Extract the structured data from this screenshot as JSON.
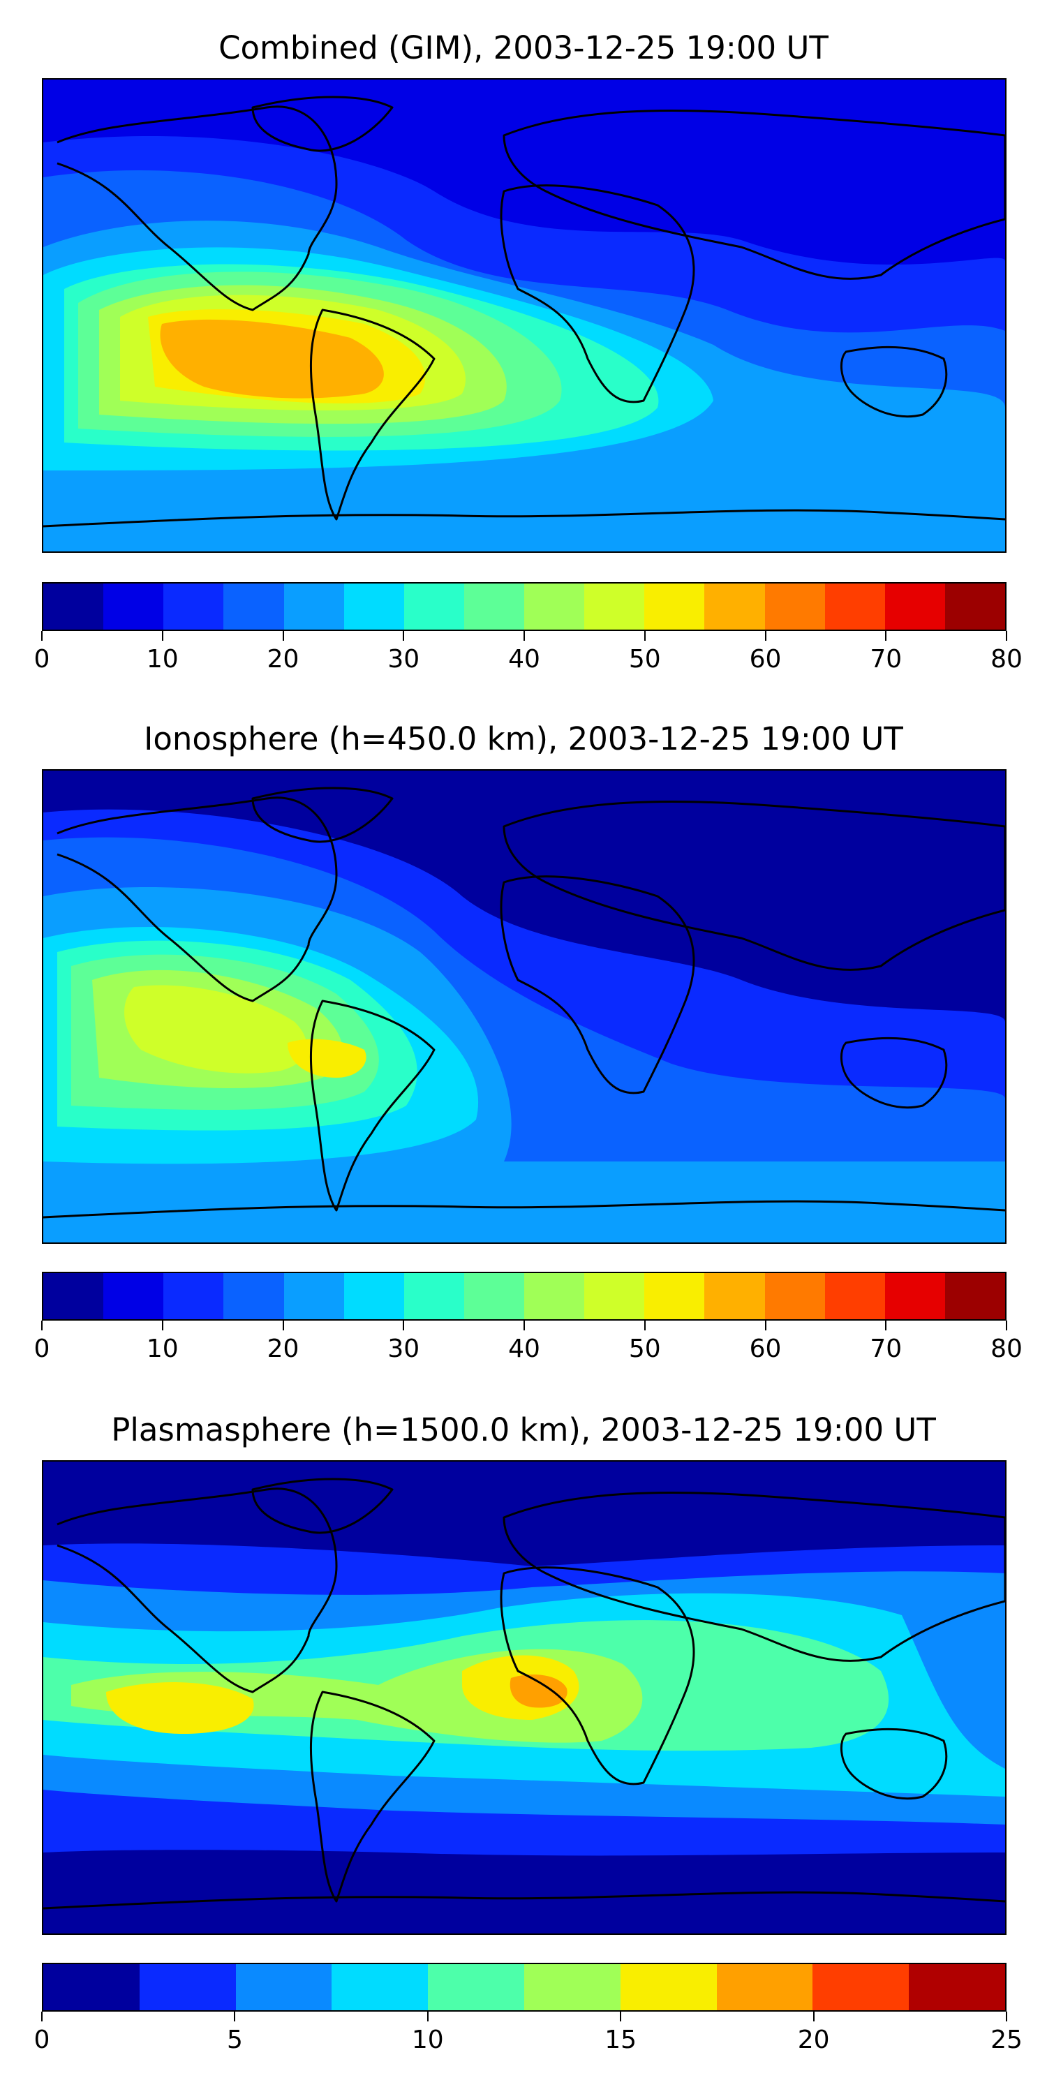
{
  "panels": [
    {
      "title": "Combined (GIM), 2003-12-25 19:00 UT",
      "colorbar": {
        "tick_labels": [
          "0",
          "10",
          "20",
          "30",
          "40",
          "50",
          "60",
          "70",
          "80"
        ],
        "min": 0,
        "max": 80,
        "colors": [
          "#00009e",
          "#0000e6",
          "#0a2aff",
          "#0a62ff",
          "#0a9eff",
          "#00dcff",
          "#29ffc9",
          "#5dff97",
          "#a0ff57",
          "#cfff29",
          "#f9ee00",
          "#ffb000",
          "#ff7a00",
          "#ff3e00",
          "#e60000",
          "#9c0000"
        ]
      },
      "map_levels": [
        {
          "color": "#0a2aff"
        },
        {
          "color": "#0a62ff"
        },
        {
          "color": "#0a9eff"
        },
        {
          "color": "#00dcff"
        },
        {
          "color": "#29ffc9"
        },
        {
          "color": "#5dff97"
        },
        {
          "color": "#a0ff57"
        },
        {
          "color": "#cfff29"
        },
        {
          "color": "#f9ee00"
        },
        {
          "color": "#ffb000"
        }
      ],
      "background": "#0000e6"
    },
    {
      "title": "Ionosphere  (h=450.0 km), 2003-12-25 19:00 UT",
      "colorbar": {
        "tick_labels": [
          "0",
          "10",
          "20",
          "30",
          "40",
          "50",
          "60",
          "70",
          "80"
        ],
        "min": 0,
        "max": 80,
        "colors": [
          "#00009e",
          "#0000e6",
          "#0a2aff",
          "#0a62ff",
          "#0a9eff",
          "#00dcff",
          "#29ffc9",
          "#5dff97",
          "#a0ff57",
          "#cfff29",
          "#f9ee00",
          "#ffb000",
          "#ff7a00",
          "#ff3e00",
          "#e60000",
          "#9c0000"
        ]
      },
      "map_levels": [
        {
          "color": "#0a2aff"
        },
        {
          "color": "#0a62ff"
        },
        {
          "color": "#0a9eff"
        },
        {
          "color": "#00dcff"
        },
        {
          "color": "#29ffc9"
        },
        {
          "color": "#5dff97"
        },
        {
          "color": "#a0ff57"
        },
        {
          "color": "#cfff29"
        },
        {
          "color": "#f9ee00"
        }
      ],
      "background": "#00009e"
    },
    {
      "title": "Plasmasphere (h=1500.0 km), 2003-12-25 19:00 UT",
      "colorbar": {
        "tick_labels": [
          "0",
          "5",
          "10",
          "15",
          "20",
          "25"
        ],
        "min": 0,
        "max": 25,
        "colors": [
          "#00009e",
          "#0a2aff",
          "#0a8aff",
          "#00dcff",
          "#4dffaa",
          "#a0ff57",
          "#f9ee00",
          "#ffa000",
          "#ff3e00",
          "#b00000"
        ]
      },
      "map_levels": [
        {
          "color": "#0a2aff"
        },
        {
          "color": "#0a8aff"
        },
        {
          "color": "#00dcff"
        },
        {
          "color": "#4dffaa"
        },
        {
          "color": "#a0ff57"
        },
        {
          "color": "#f9ee00"
        },
        {
          "color": "#ffa000"
        }
      ],
      "background": "#00009e"
    }
  ]
}
